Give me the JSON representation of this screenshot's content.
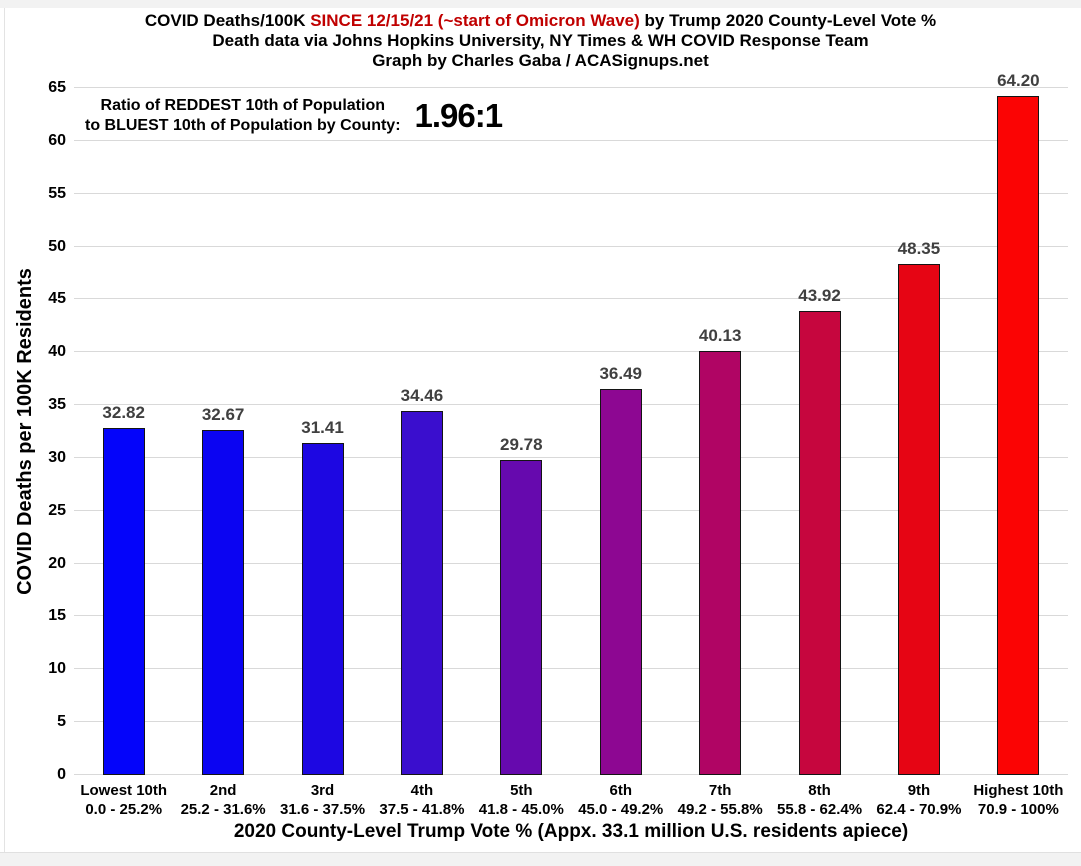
{
  "title": {
    "line1_part1": "COVID Deaths/100K ",
    "line1_highlight": "SINCE 12/15/21 (~start of Omicron Wave)",
    "line1_part2": " by Trump 2020 County-Level Vote %",
    "line2": "Death data via Johns Hopkins University, NY Times & WH COVID Response Team",
    "line3": "Graph by Charles Gaba / ACASignups.net",
    "highlight_color": "#c00000"
  },
  "annotation": {
    "line1": "Ratio of REDDEST 10th of Population",
    "line2": "to BLUEST 10th of Population by County:",
    "ratio": "1.96:1"
  },
  "chart_data": {
    "type": "bar",
    "title": "COVID Deaths/100K SINCE 12/15/21 (~start of Omicron Wave) by Trump 2020 County-Level Vote %",
    "subtitle1": "Death data via Johns Hopkins University, NY Times & WH COVID Response Team",
    "subtitle2": "Graph by Charles Gaba / ACASignups.net",
    "xlabel": "2020 County-Level Trump Vote % (Appx. 33.1 million U.S. residents apiece)",
    "ylabel": "COVID Deaths per 100K Residents",
    "ylim": [
      0,
      65
    ],
    "ytick_step": 5,
    "grid": true,
    "legend_position": "none",
    "categories": [
      "Lowest 10th",
      "2nd",
      "3rd",
      "4th",
      "5th",
      "6th",
      "7th",
      "8th",
      "9th",
      "Highest 10th"
    ],
    "category_ranges": [
      "0.0 - 25.2%",
      "25.2 - 31.6%",
      "31.6 - 37.5%",
      "37.5 - 41.8%",
      "41.8 - 45.0%",
      "45.0 - 49.2%",
      "49.2 - 55.8%",
      "55.8 - 62.4%",
      "62.4 - 70.9%",
      "70.9 - 100%"
    ],
    "values": [
      32.82,
      32.67,
      31.41,
      34.46,
      29.78,
      36.49,
      40.13,
      43.92,
      48.35,
      64.2
    ],
    "bar_colors": [
      "#0404fa",
      "#0b04f2",
      "#1d07e2",
      "#3a0ece",
      "#6609ae",
      "#8d0792",
      "#b00564",
      "#c6063e",
      "#e60514",
      "#fb0404"
    ],
    "value_label_color": "#404040",
    "gridline_color": "#d9d9d9",
    "bar_border_color": "#141414"
  }
}
